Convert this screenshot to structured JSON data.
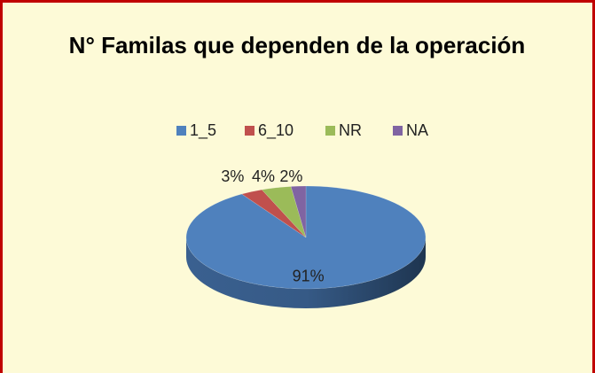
{
  "chart_data": {
    "type": "pie",
    "title": "N° Familas que dependen de la operación",
    "categories": [
      "1_5",
      "6_10",
      "NR",
      "NA"
    ],
    "values": [
      91,
      3,
      4,
      2
    ],
    "value_labels": [
      "91%",
      "3%",
      "4%",
      "2%"
    ],
    "colors": [
      "#4f81bd",
      "#c0504d",
      "#9bbb59",
      "#8064a2"
    ],
    "legend": "top"
  }
}
